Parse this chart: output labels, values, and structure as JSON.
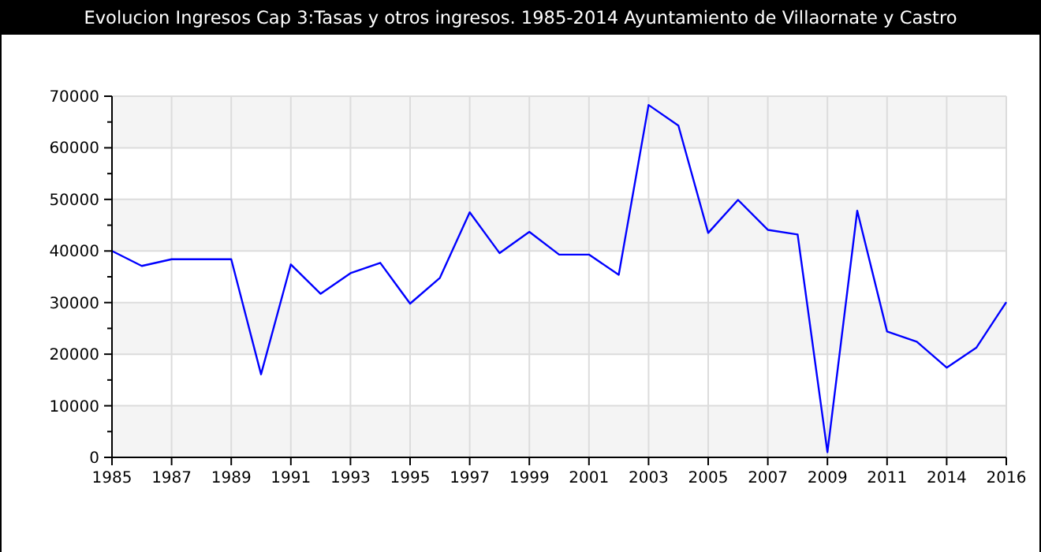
{
  "chart_data": {
    "type": "line",
    "title": "Evolucion Ingresos Cap 3:Tasas y otros ingresos. 1985-2014 Ayuntamiento de Villaornate y Castro",
    "categories": [
      "1985",
      null,
      "1987",
      null,
      "1989",
      null,
      "1991",
      null,
      "1993",
      null,
      "1995",
      null,
      "1997",
      null,
      "1999",
      null,
      "2001",
      null,
      "2003",
      null,
      "2005",
      null,
      "2007",
      null,
      "2009",
      null,
      "2011",
      null,
      "2014",
      null,
      "2016"
    ],
    "series": [
      {
        "color": "#0000ff",
        "values": [
          40000,
          37100,
          38400,
          38400,
          38400,
          16100,
          37400,
          31700,
          35700,
          37700,
          29800,
          34800,
          47500,
          39600,
          43700,
          39300,
          39300,
          35400,
          68300,
          64300,
          43500,
          49900,
          44100,
          43200,
          1000,
          47800,
          24400,
          22400,
          17400,
          21300,
          30100
        ]
      }
    ],
    "ylim": [
      0,
      70000
    ],
    "yticks": [
      0,
      {
        "value": 5000,
        "label": null
      },
      10000,
      {
        "value": 15000,
        "label": null
      },
      20000,
      {
        "value": 25000,
        "label": null
      },
      30000,
      {
        "value": 35000,
        "label": null
      },
      40000,
      {
        "value": 45000,
        "label": null
      },
      50000,
      {
        "value": 55000,
        "label": null
      },
      60000,
      {
        "value": 65000,
        "label": null
      },
      70000
    ],
    "grid": true,
    "marker": "none",
    "line_style": "solid"
  }
}
